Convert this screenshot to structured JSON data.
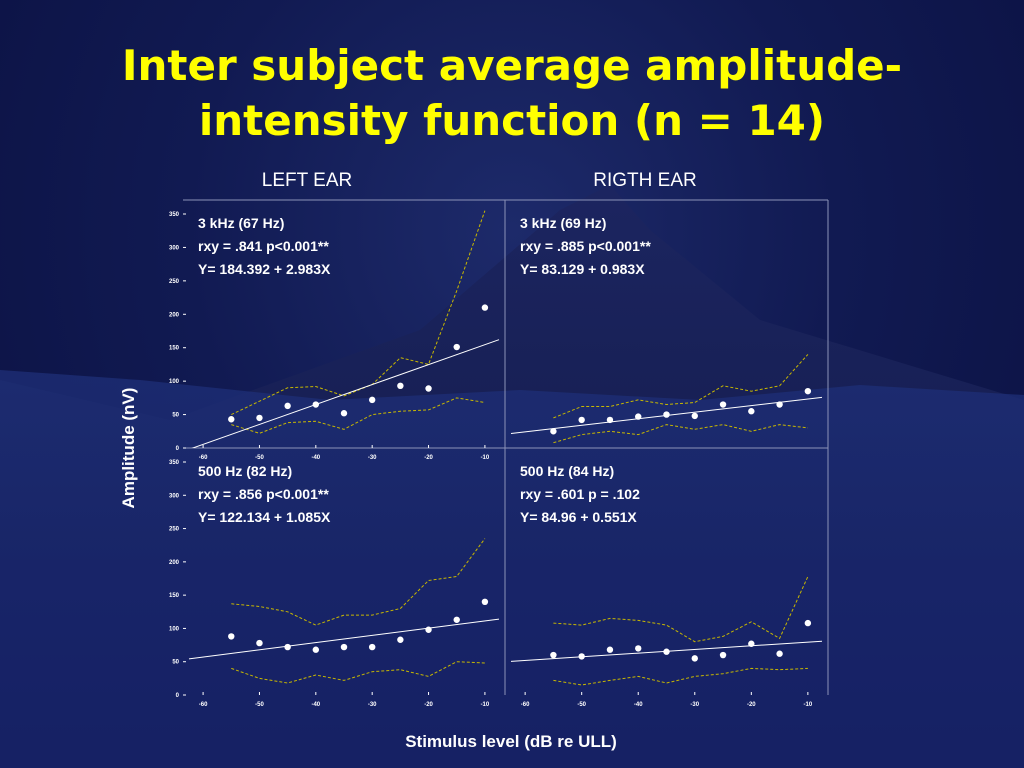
{
  "slide": {
    "title_line1": "Inter subject average amplitude-",
    "title_line2": "intensity function (n = 14)"
  },
  "columns": {
    "left": "LEFT EAR",
    "right": "RIGTH EAR"
  },
  "axes": {
    "xlabel": "Stimulus level (dB re ULL)",
    "ylabel": "Amplitude (nV)"
  },
  "chart_data": [
    {
      "type": "scatter",
      "panel": "left-3khz",
      "annotations": [
        "3 kHz (67 Hz)",
        "rxy = .841 p<0.001**",
        "Y= 184.392 + 2.983X"
      ],
      "xlim": [
        -62.5,
        -7.5
      ],
      "ylim": [
        0,
        350
      ],
      "xticks": [
        "-60",
        "-50",
        "-40",
        "-30",
        "-20",
        "-10"
      ],
      "yticks": [
        "0",
        "50",
        "100",
        "150",
        "200",
        "250",
        "300",
        "350"
      ],
      "x": [
        -55,
        -50,
        -45,
        -40,
        -35,
        -30,
        -25,
        -20,
        -15,
        -10
      ],
      "y": [
        43,
        45,
        63,
        65,
        52,
        72,
        93,
        89,
        151,
        210
      ],
      "upper": [
        [
          -55,
          50
        ],
        [
          -50,
          70
        ],
        [
          -45,
          90
        ],
        [
          -40,
          92
        ],
        [
          -35,
          78
        ],
        [
          -30,
          95
        ],
        [
          -25,
          135
        ],
        [
          -20,
          125
        ],
        [
          -15,
          235
        ],
        [
          -10,
          355
        ]
      ],
      "lower": [
        [
          -55,
          35
        ],
        [
          -50,
          22
        ],
        [
          -45,
          38
        ],
        [
          -40,
          40
        ],
        [
          -35,
          28
        ],
        [
          -30,
          50
        ],
        [
          -25,
          55
        ],
        [
          -20,
          57
        ],
        [
          -15,
          75
        ],
        [
          -10,
          68
        ]
      ],
      "fit": {
        "intercept": 184.392,
        "slope": 2.983
      }
    },
    {
      "type": "scatter",
      "panel": "right-3khz",
      "annotations": [
        "3 kHz (69 Hz)",
        "rxy = .885 p<0.001**",
        "Y= 83.129 + 0.983X"
      ],
      "xlim": [
        -62.5,
        -7.5
      ],
      "ylim": [
        0,
        350
      ],
      "xticks": [],
      "yticks": [],
      "x": [
        -55,
        -50,
        -45,
        -40,
        -35,
        -30,
        -25,
        -20,
        -15,
        -10
      ],
      "y": [
        25,
        42,
        42,
        47,
        50,
        48,
        65,
        55,
        65,
        85
      ],
      "upper": [
        [
          -55,
          45
        ],
        [
          -50,
          62
        ],
        [
          -45,
          62
        ],
        [
          -40,
          72
        ],
        [
          -35,
          65
        ],
        [
          -30,
          68
        ],
        [
          -25,
          93
        ],
        [
          -20,
          85
        ],
        [
          -15,
          93
        ],
        [
          -10,
          140
        ]
      ],
      "lower": [
        [
          -55,
          8
        ],
        [
          -50,
          20
        ],
        [
          -45,
          25
        ],
        [
          -40,
          20
        ],
        [
          -35,
          35
        ],
        [
          -30,
          28
        ],
        [
          -25,
          35
        ],
        [
          -20,
          25
        ],
        [
          -15,
          35
        ],
        [
          -10,
          30
        ]
      ],
      "fit": {
        "intercept": 83.129,
        "slope": 0.983
      }
    },
    {
      "type": "scatter",
      "panel": "left-500hz",
      "annotations": [
        "500 Hz (82 Hz)",
        "rxy = .856 p<0.001**",
        "Y= 122.134 + 1.085X"
      ],
      "xlim": [
        -62.5,
        -7.5
      ],
      "ylim": [
        0,
        350
      ],
      "xticks": [
        "-60",
        "-50",
        "-40",
        "-30",
        "-20",
        "-10"
      ],
      "yticks": [
        "0",
        "50",
        "100",
        "150",
        "200",
        "250",
        "300",
        "350"
      ],
      "x": [
        -55,
        -50,
        -45,
        -40,
        -35,
        -30,
        -25,
        -20,
        -15,
        -10
      ],
      "y": [
        88,
        78,
        72,
        68,
        72,
        72,
        83,
        98,
        113,
        140
      ],
      "upper": [
        [
          -55,
          137
        ],
        [
          -50,
          133
        ],
        [
          -45,
          125
        ],
        [
          -40,
          105
        ],
        [
          -35,
          120
        ],
        [
          -30,
          120
        ],
        [
          -25,
          130
        ],
        [
          -20,
          172
        ],
        [
          -15,
          178
        ],
        [
          -10,
          235
        ]
      ],
      "lower": [
        [
          -55,
          40
        ],
        [
          -50,
          25
        ],
        [
          -45,
          18
        ],
        [
          -40,
          30
        ],
        [
          -35,
          22
        ],
        [
          -30,
          35
        ],
        [
          -25,
          38
        ],
        [
          -20,
          28
        ],
        [
          -15,
          50
        ],
        [
          -10,
          48
        ]
      ],
      "fit": {
        "intercept": 122.134,
        "slope": 1.085
      }
    },
    {
      "type": "scatter",
      "panel": "right-500hz",
      "annotations": [
        "500 Hz (84 Hz)",
        "rxy = .601 p = .102",
        "Y= 84.96 + 0.551X"
      ],
      "xlim": [
        -62.5,
        -7.5
      ],
      "ylim": [
        0,
        350
      ],
      "xticks": [
        "-60",
        "-50",
        "-40",
        "-30",
        "-20",
        "-10"
      ],
      "yticks": [],
      "x": [
        -55,
        -50,
        -45,
        -40,
        -35,
        -30,
        -25,
        -20,
        -15,
        -10
      ],
      "y": [
        60,
        58,
        68,
        70,
        65,
        55,
        60,
        77,
        62,
        108
      ],
      "upper": [
        [
          -55,
          108
        ],
        [
          -50,
          105
        ],
        [
          -45,
          115
        ],
        [
          -40,
          112
        ],
        [
          -35,
          105
        ],
        [
          -30,
          80
        ],
        [
          -25,
          88
        ],
        [
          -20,
          110
        ],
        [
          -15,
          85
        ],
        [
          -10,
          178
        ]
      ],
      "lower": [
        [
          -55,
          22
        ],
        [
          -50,
          15
        ],
        [
          -45,
          22
        ],
        [
          -40,
          28
        ],
        [
          -35,
          18
        ],
        [
          -30,
          28
        ],
        [
          -25,
          32
        ],
        [
          -20,
          40
        ],
        [
          -15,
          38
        ],
        [
          -10,
          40
        ]
      ],
      "fit": {
        "intercept": 84.96,
        "slope": 0.551
      }
    }
  ]
}
